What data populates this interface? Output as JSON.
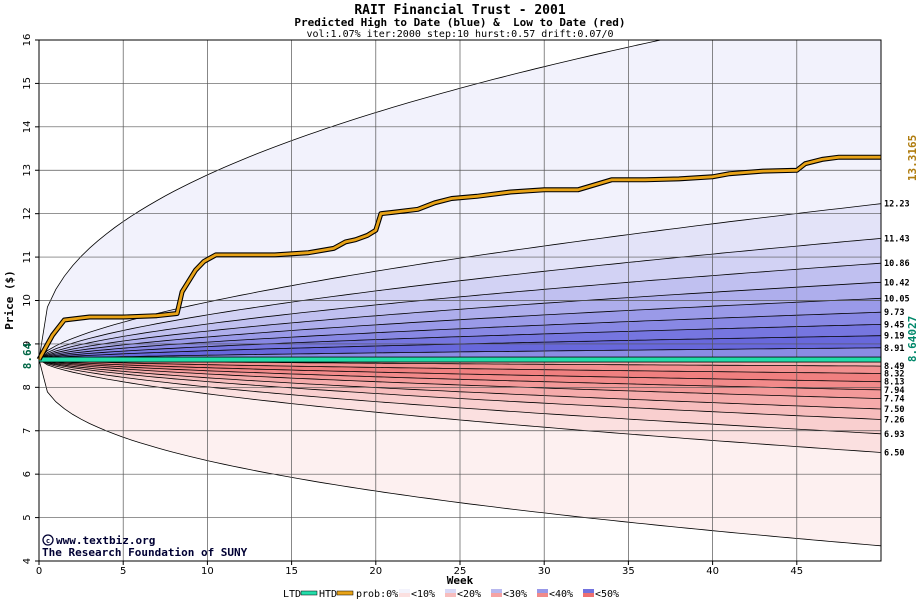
{
  "chart_data": {
    "type": "area",
    "title": "RAIT Financial Trust - 2001",
    "subtitle": "Predicted High to Date (blue) &  Low to Date (red)",
    "params": "vol:1.07% iter:2000 step:10 hurst:0.57 drift:0.07/0",
    "xlabel": "Week",
    "ylabel": "Price ($)",
    "xlim": [
      0,
      50
    ],
    "ylim": [
      4,
      16
    ],
    "x_ticks": [
      0,
      5,
      10,
      15,
      20,
      25,
      30,
      35,
      40,
      45
    ],
    "y_ticks": [
      4,
      5,
      6,
      7,
      8,
      9,
      10,
      11,
      12,
      13,
      14,
      15,
      16
    ],
    "grid": true,
    "start_price": 8.64,
    "start_price_label": "8.64",
    "last_htd_label": "13.3165",
    "last_ltd_label": "8.64027",
    "credit_site": "www.textbiz.org",
    "credit_org": "The Research Foundation of SUNY",
    "high_bands": [
      {
        "end": 17.0,
        "shape": 0.42
      },
      {
        "end": 12.23,
        "shape": 0.62
      },
      {
        "end": 11.43,
        "shape": 0.62
      },
      {
        "end": 10.86,
        "shape": 0.62
      },
      {
        "end": 10.42,
        "shape": 0.62
      },
      {
        "end": 10.05,
        "shape": 0.62
      },
      {
        "end": 9.73,
        "shape": 0.62
      },
      {
        "end": 9.45,
        "shape": 0.62
      },
      {
        "end": 9.19,
        "shape": 0.62
      },
      {
        "end": 8.91,
        "shape": 0.62
      }
    ],
    "low_bands": [
      {
        "end": 4.35,
        "shape": 0.38
      },
      {
        "end": 6.5,
        "shape": 0.62
      },
      {
        "end": 6.93,
        "shape": 0.62
      },
      {
        "end": 7.26,
        "shape": 0.62
      },
      {
        "end": 7.5,
        "shape": 0.62
      },
      {
        "end": 7.74,
        "shape": 0.62
      },
      {
        "end": 7.94,
        "shape": 0.62
      },
      {
        "end": 8.13,
        "shape": 0.62
      },
      {
        "end": 8.32,
        "shape": 0.62
      },
      {
        "end": 8.49,
        "shape": 0.62
      }
    ],
    "band_fills": {
      "high": [
        "#f2f2fc",
        "#e3e3f8",
        "#d2d2f4",
        "#c0c0f0",
        "#aeaeec",
        "#9a9ae8",
        "#8888e4",
        "#7676e0",
        "#6868dc",
        "#8c8ce4"
      ],
      "low": [
        "#fdf0f0",
        "#fbe0e0",
        "#f9cfcf",
        "#f7bdbd",
        "#f5abab",
        "#f39999",
        "#f28a8a",
        "#f08080",
        "#f29090",
        "#f6b0b0"
      ]
    },
    "right_labels": [
      "12.23",
      "11.43",
      "10.86",
      "10.42",
      "10.05",
      "9.73",
      "9.45",
      "9.19",
      "8.91",
      "8.49",
      "8.32",
      "8.13",
      "7.94",
      "7.74",
      "7.50",
      "7.26",
      "6.93",
      "6.50"
    ],
    "htd_series": {
      "name": "HTD",
      "color": "#e8a317",
      "x": [
        0,
        0.8,
        1.5,
        3,
        5,
        7,
        8.2,
        8.5,
        9.3,
        9.8,
        10.5,
        12,
        14,
        16,
        17.5,
        18.2,
        18.8,
        19.5,
        20.0,
        20.3,
        21,
        22.5,
        23.5,
        24.5,
        26,
        28,
        30,
        32,
        34,
        36,
        38,
        40,
        41,
        43,
        45,
        45.5,
        46.5,
        47.5,
        50
      ],
      "y": [
        8.64,
        9.2,
        9.55,
        9.62,
        9.62,
        9.65,
        9.7,
        10.2,
        10.7,
        10.9,
        11.05,
        11.05,
        11.05,
        11.1,
        11.2,
        11.35,
        11.4,
        11.5,
        11.62,
        12.0,
        12.03,
        12.1,
        12.25,
        12.35,
        12.4,
        12.5,
        12.55,
        12.55,
        12.78,
        12.78,
        12.8,
        12.85,
        12.92,
        12.98,
        13.0,
        13.15,
        13.25,
        13.3,
        13.3
      ]
    },
    "ltd_series": {
      "name": "LTD",
      "color": "#22ddaa",
      "x": [
        0,
        50
      ],
      "y": [
        8.64,
        8.64
      ]
    },
    "legend": {
      "ltd": "LTD",
      "htd": "HTD",
      "prob": "prob:0%",
      "items": [
        "<10%",
        "<20%",
        "<30%",
        "<40%",
        "<50%"
      ],
      "swatches": [
        "#f3f3fc",
        "#fbe0e0",
        "#d8d8f6",
        "#f7bdbd",
        "#b8b8ee",
        "#f5a3a3",
        "#9898e8",
        "#f08a8a",
        "#7272de",
        "#ee7070"
      ]
    }
  }
}
